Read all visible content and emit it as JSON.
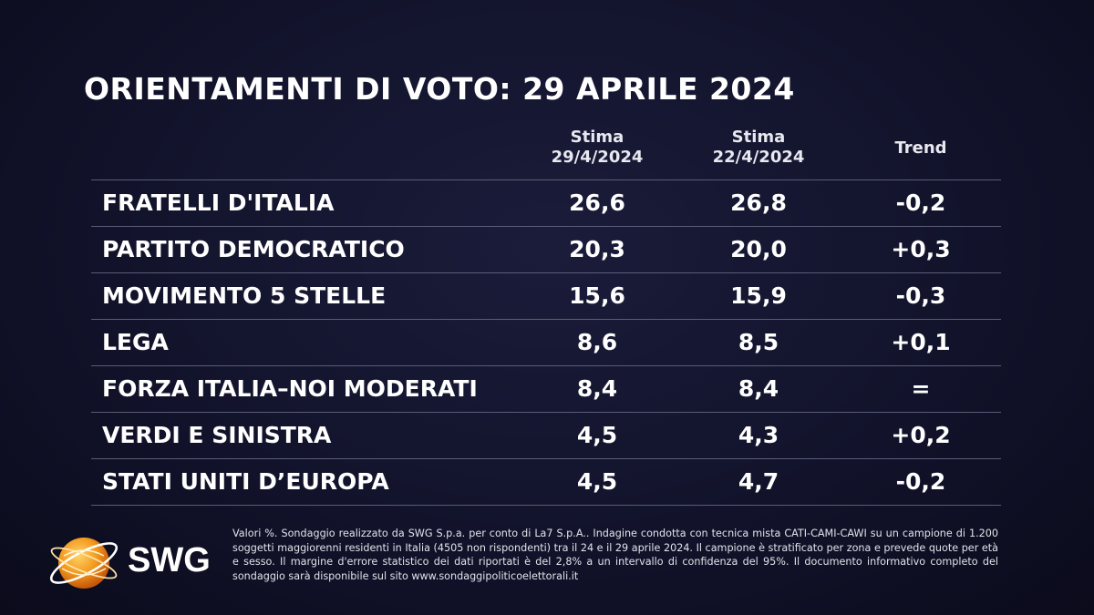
{
  "title": "ORIENTAMENTI DI VOTO: 29 APRILE 2024",
  "chart_data": {
    "type": "table",
    "columns": [
      {
        "label_line1": "Stima",
        "label_line2": "29/4/2024"
      },
      {
        "label_line1": "Stima",
        "label_line2": "22/4/2024"
      },
      {
        "label_line1": "Trend",
        "label_line2": ""
      }
    ],
    "rows": [
      {
        "party": "FRATELLI D'ITALIA",
        "v1": "26,6",
        "v2": "26,8",
        "trend": "-0,2"
      },
      {
        "party": "PARTITO DEMOCRATICO",
        "v1": "20,3",
        "v2": "20,0",
        "trend": "+0,3"
      },
      {
        "party": "MOVIMENTO 5 STELLE",
        "v1": "15,6",
        "v2": "15,9",
        "trend": "-0,3"
      },
      {
        "party": "LEGA",
        "v1": "8,6",
        "v2": "8,5",
        "trend": "+0,1"
      },
      {
        "party": "FORZA ITALIA–NOI MODERATI",
        "v1": "8,4",
        "v2": "8,4",
        "trend": "="
      },
      {
        "party": "VERDI E SINISTRA",
        "v1": "4,5",
        "v2": "4,3",
        "trend": "+0,2"
      },
      {
        "party": "STATI UNITI D’EUROPA",
        "v1": "4,5",
        "v2": "4,7",
        "trend": "-0,2"
      }
    ]
  },
  "logo": {
    "text": "SWG",
    "icon": "globe-icon",
    "accent": "#f39a1e"
  },
  "footnote": "Valori %. Sondaggio realizzato da SWG S.p.a. per conto di La7 S.p.A.. Indagine condotta con tecnica mista CATI-CAMI-CAWI su un campione di 1.200 soggetti maggiorenni residenti in Italia (4505 non rispondenti) tra il 24 e il 29 aprile 2024. Il campione è stratificato per zona e prevede quote per età e sesso. Il margine d'errore statistico dei dati riportati è del 2,8% a un intervallo di confidenza del 95%. Il documento informativo completo del sondaggio sarà disponibile sul sito www.sondaggipoliticoelettorali.it"
}
